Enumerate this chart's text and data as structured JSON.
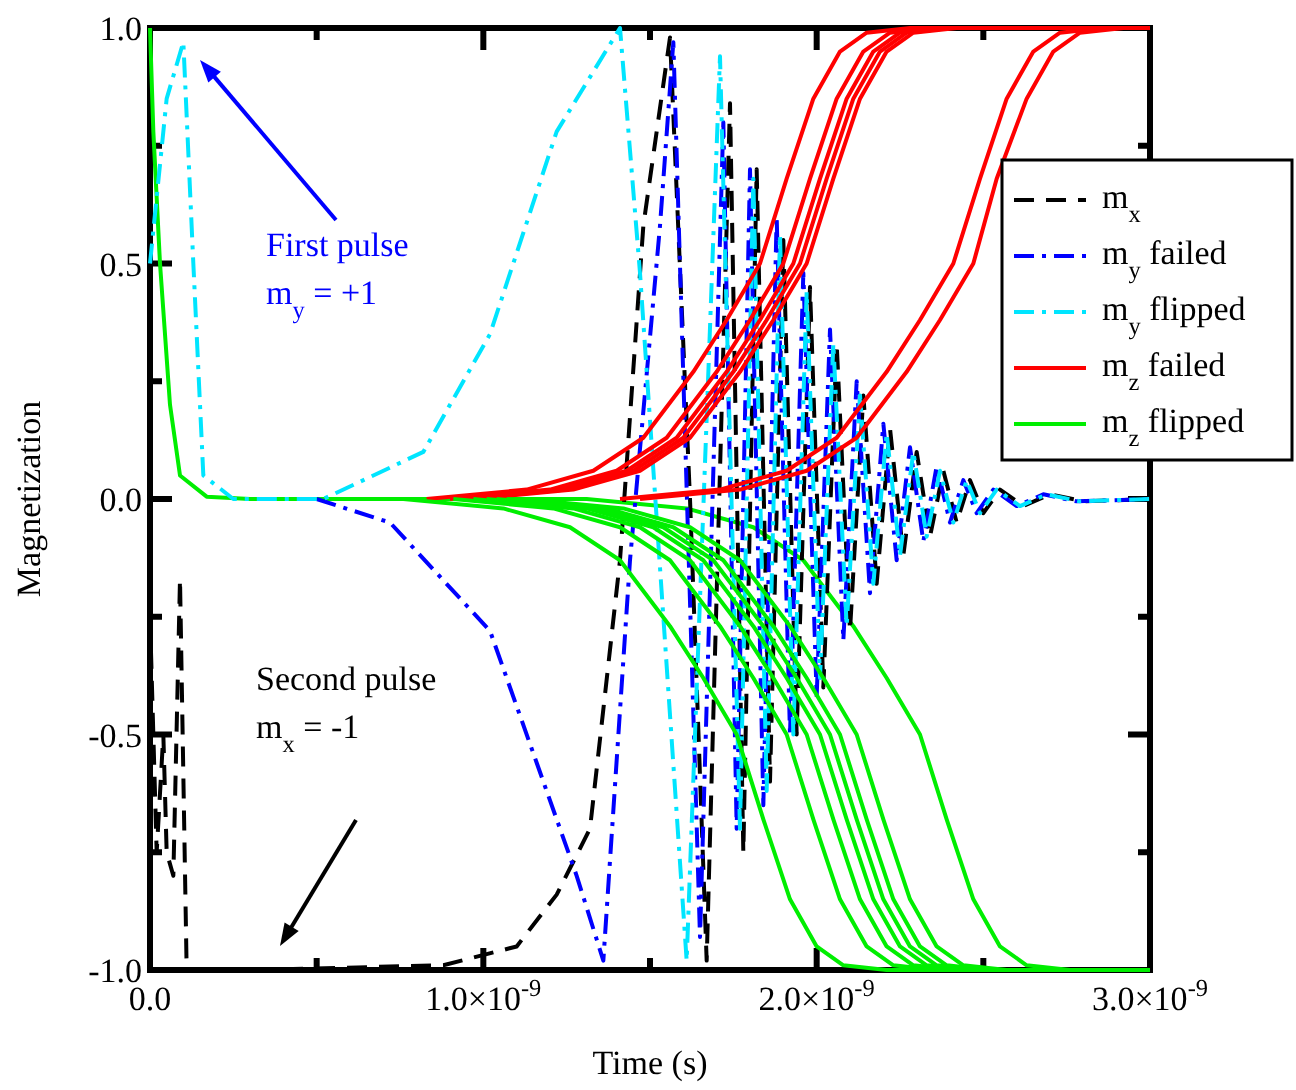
{
  "chart_data": {
    "type": "line",
    "xlabel": "Time (s)",
    "ylabel": "Magnetization",
    "xlim": [
      0,
      3e-09
    ],
    "ylim": [
      -1,
      1
    ],
    "xticks": [
      {
        "value": 0,
        "label": "0.0"
      },
      {
        "value": 5e-10,
        "label": null
      },
      {
        "value": 1e-09,
        "label": "1.0×10$^{-9}$"
      },
      {
        "value": 1.5e-09,
        "label": null
      },
      {
        "value": 2e-09,
        "label": "2.0×10$^{-9}$"
      },
      {
        "value": 2.5e-09,
        "label": null
      },
      {
        "value": 3e-09,
        "label": "3.0×10$^{-9}$"
      }
    ],
    "yticks": [
      {
        "value": -1,
        "label": "-1.0"
      },
      {
        "value": -0.75,
        "label": null
      },
      {
        "value": -0.5,
        "label": "-0.5"
      },
      {
        "value": -0.25,
        "label": null
      },
      {
        "value": 0,
        "label": "0.0"
      },
      {
        "value": 0.25,
        "label": null
      },
      {
        "value": 0.5,
        "label": "0.5"
      },
      {
        "value": 0.75,
        "label": null
      },
      {
        "value": 1,
        "label": "1.0"
      }
    ],
    "legend": "right",
    "grid": false,
    "annotations": [
      "First pulse\nm$_{y}$ = +1",
      "Second pulse\nm$_{x}$ = -1"
    ],
    "series": [
      {
        "color": "#00ee00",
        "line_style": "solid",
        "x": [
          0,
          1e-11,
          3e-11,
          6e-11,
          9e-11,
          1.7e-10,
          3e-10,
          1.31e-09,
          1.61e-09,
          1.81e-09,
          1.96e-09,
          2.11e-09,
          2.21e-09,
          2.31e-09,
          2.39e-09,
          2.47e-09,
          2.55e-09,
          2.63e-09,
          2.76e-09,
          3e-09
        ],
        "values": [
          1,
          0.78,
          0.5,
          0.2,
          0.05,
          0.005,
          0,
          0,
          -0.02,
          -0.06,
          -0.13,
          -0.27,
          -0.38,
          -0.5,
          -0.68,
          -0.85,
          -0.95,
          -0.99,
          -1,
          -1
        ]
      },
      {
        "name": "m$_{x}$",
        "color": "#000000",
        "line_style": "dashed",
        "x": [
          0,
          2e-11,
          4e-11,
          5e-11,
          7e-11,
          9e-11,
          1.1e-10,
          3e-10,
          8.8e-10,
          1.1e-09,
          1.22e-09,
          1.32e-09,
          1.41e-09,
          1.48e-09,
          1.56e-09,
          1.62e-09,
          1.67e-09,
          1.74e-09,
          1.78e-09,
          1.82e-09,
          1.86e-09,
          1.9e-09,
          1.94e-09,
          1.98e-09,
          2.02e-09,
          2.06e-09,
          2.1e-09,
          2.14e-09,
          2.18e-09,
          2.22e-09,
          2.26e-09,
          2.3e-09,
          2.34e-09,
          2.38e-09,
          2.42e-09,
          2.46e-09,
          2.5e-09,
          2.55e-09,
          2.62e-09,
          2.7e-09,
          2.8e-09,
          3e-09
        ],
        "values": [
          -0.25,
          -0.75,
          -0.5,
          -0.75,
          -0.8,
          -0.17,
          -1,
          -1,
          -0.99,
          -0.95,
          -0.84,
          -0.7,
          -0.13,
          0.58,
          0.98,
          0,
          -0.98,
          0.84,
          -0.75,
          0.7,
          -0.6,
          0.55,
          -0.5,
          0.45,
          -0.4,
          0.33,
          -0.28,
          0.22,
          -0.18,
          0.15,
          -0.12,
          0.1,
          -0.08,
          0.06,
          -0.05,
          0.04,
          -0.03,
          0.02,
          -0.015,
          0.01,
          -0.005,
          0
        ]
      },
      {
        "name": "m$_{y}$ failed",
        "color": "#0000ff",
        "line_style": "dashdot",
        "x": [
          5e-10,
          7.2e-10,
          1.02e-09,
          1.16e-09,
          1.28e-09,
          1.36e-09,
          1.44e-09,
          1.53e-09,
          1.57e-09,
          1.65e-09,
          1.72e-09,
          1.76e-09,
          1.8e-09,
          1.84e-09,
          1.88e-09,
          1.92e-09,
          1.96e-09,
          2e-09,
          2.04e-09,
          2.08e-09,
          2.12e-09,
          2.16e-09,
          2.2e-09,
          2.24e-09,
          2.28e-09,
          2.32e-09,
          2.36e-09,
          2.4e-09,
          2.44e-09,
          2.48e-09,
          2.53e-09,
          2.6e-09,
          2.68e-09,
          2.78e-09,
          3e-09
        ],
        "values": [
          0,
          -0.05,
          -0.28,
          -0.56,
          -0.8,
          -0.98,
          -0.13,
          0.58,
          0.97,
          -0.93,
          0.8,
          -0.7,
          0.7,
          -0.65,
          0.6,
          -0.5,
          0.48,
          -0.42,
          0.36,
          -0.3,
          0.25,
          -0.2,
          0.16,
          -0.13,
          0.11,
          -0.09,
          0.07,
          -0.05,
          0.04,
          -0.03,
          0.02,
          -0.015,
          0.01,
          -0.005,
          0
        ]
      },
      {
        "name": "m$_{y}$ flipped",
        "color": "#00e5ff",
        "line_style": "dashdot",
        "x": [
          0,
          5e-11,
          1e-10,
          1.3e-10,
          1.6e-10,
          2.5e-10,
          5.2e-10,
          8.2e-10,
          1.02e-09,
          1.22e-09,
          1.41e-09,
          1.47e-09,
          1.61e-09,
          1.71e-09,
          1.77e-09,
          1.81e-09,
          1.85e-09,
          1.89e-09,
          1.93e-09,
          1.97e-09,
          2.01e-09,
          2.05e-09,
          2.09e-09,
          2.13e-09,
          2.17e-09,
          2.21e-09,
          2.25e-09,
          2.29e-09,
          2.33e-09,
          2.37e-09,
          2.41e-09,
          2.45e-09,
          2.49e-09,
          2.54e-09,
          2.61e-09,
          2.69e-09,
          2.79e-09,
          3e-09
        ],
        "values": [
          0.5,
          0.85,
          0.97,
          0.5,
          0.05,
          0,
          0,
          0.1,
          0.35,
          0.78,
          1,
          0.48,
          -0.98,
          0.94,
          -0.7,
          0.68,
          -0.62,
          0.56,
          -0.5,
          0.44,
          -0.38,
          0.33,
          -0.27,
          0.22,
          -0.18,
          0.14,
          -0.12,
          0.1,
          -0.08,
          0.06,
          -0.05,
          0.04,
          -0.03,
          0.02,
          -0.015,
          0.01,
          -0.005,
          0
        ]
      },
      {
        "name": "m$_{z}$ failed",
        "color": "#ff0000",
        "line_style": "solid",
        "x": [
          8.3e-10,
          1.13e-09,
          1.33e-09,
          1.48e-09,
          1.63e-09,
          1.73e-09,
          1.83e-09,
          1.91e-09,
          1.99e-09,
          2.07e-09,
          2.15e-09,
          2.28e-09,
          3e-09
        ],
        "values": [
          0,
          0.02,
          0.06,
          0.13,
          0.27,
          0.38,
          0.5,
          0.68,
          0.85,
          0.95,
          0.99,
          1,
          1
        ]
      },
      {
        "color": "#ff0000",
        "line_style": "solid",
        "x": [
          9e-10,
          1.2e-09,
          1.4e-09,
          1.55e-09,
          1.7e-09,
          1.8e-09,
          1.9e-09,
          1.98e-09,
          2.06e-09,
          2.14e-09,
          2.22e-09,
          2.35e-09,
          3e-09
        ],
        "values": [
          0,
          0.02,
          0.06,
          0.13,
          0.27,
          0.38,
          0.5,
          0.68,
          0.85,
          0.95,
          0.99,
          1,
          1
        ]
      },
      {
        "color": "#ff0000",
        "line_style": "solid",
        "x": [
          9.3e-10,
          1.23e-09,
          1.43e-09,
          1.58e-09,
          1.73e-09,
          1.83e-09,
          1.93e-09,
          2.01e-09,
          2.09e-09,
          2.17e-09,
          2.25e-09,
          2.38e-09,
          3e-09
        ],
        "values": [
          0,
          0.02,
          0.06,
          0.13,
          0.27,
          0.38,
          0.5,
          0.68,
          0.85,
          0.95,
          0.99,
          1,
          1
        ]
      },
      {
        "color": "#ff0000",
        "line_style": "solid",
        "x": [
          9.5e-10,
          1.25e-09,
          1.45e-09,
          1.6e-09,
          1.75e-09,
          1.85e-09,
          1.95e-09,
          2.03e-09,
          2.11e-09,
          2.19e-09,
          2.27e-09,
          2.4e-09,
          3e-09
        ],
        "values": [
          0,
          0.02,
          0.06,
          0.13,
          0.27,
          0.38,
          0.5,
          0.68,
          0.85,
          0.95,
          0.99,
          1,
          1
        ]
      },
      {
        "color": "#ff0000",
        "line_style": "solid",
        "x": [
          9.7e-10,
          1.27e-09,
          1.47e-09,
          1.62e-09,
          1.77e-09,
          1.87e-09,
          1.97e-09,
          2.05e-09,
          2.13e-09,
          2.21e-09,
          2.29e-09,
          2.42e-09,
          3e-09
        ],
        "values": [
          0,
          0.02,
          0.06,
          0.13,
          0.27,
          0.38,
          0.5,
          0.68,
          0.85,
          0.95,
          0.99,
          1,
          1
        ]
      },
      {
        "color": "#ff0000",
        "line_style": "solid",
        "x": [
          1.41e-09,
          1.71e-09,
          1.91e-09,
          2.06e-09,
          2.21e-09,
          2.31e-09,
          2.41e-09,
          2.49e-09,
          2.57e-09,
          2.65e-09,
          2.73e-09,
          2.86e-09,
          3e-09
        ],
        "values": [
          0,
          0.02,
          0.06,
          0.13,
          0.27,
          0.38,
          0.5,
          0.68,
          0.85,
          0.95,
          0.99,
          1,
          1
        ]
      },
      {
        "color": "#ff0000",
        "line_style": "solid",
        "x": [
          1.47e-09,
          1.77e-09,
          1.97e-09,
          2.12e-09,
          2.27e-09,
          2.37e-09,
          2.47e-09,
          2.54e-09,
          2.63e-09,
          2.71e-09,
          2.79e-09,
          2.92e-09,
          3e-09
        ],
        "values": [
          0,
          0.02,
          0.06,
          0.13,
          0.27,
          0.38,
          0.5,
          0.68,
          0.85,
          0.95,
          0.99,
          1,
          1
        ]
      },
      {
        "color": "#00ee00",
        "line_style": "solid",
        "x": [
          9.1e-10,
          1.21e-09,
          1.41e-09,
          1.56e-09,
          1.71e-09,
          1.81e-09,
          1.91e-09,
          1.99e-09,
          2.07e-09,
          2.15e-09,
          2.23e-09,
          2.36e-09,
          3e-09
        ],
        "values": [
          0,
          -0.02,
          -0.06,
          -0.13,
          -0.27,
          -0.38,
          -0.5,
          -0.68,
          -0.85,
          -0.95,
          -0.99,
          -1,
          -1
        ]
      },
      {
        "color": "#00ee00",
        "line_style": "solid",
        "x": [
          9.7e-10,
          1.27e-09,
          1.47e-09,
          1.62e-09,
          1.77e-09,
          1.87e-09,
          1.97e-09,
          2.05e-09,
          2.13e-09,
          2.21e-09,
          2.29e-09,
          2.42e-09,
          3e-09
        ],
        "values": [
          0,
          -0.02,
          -0.06,
          -0.13,
          -0.27,
          -0.38,
          -0.5,
          -0.68,
          -0.85,
          -0.95,
          -0.99,
          -1,
          -1
        ]
      },
      {
        "color": "#00ee00",
        "line_style": "solid",
        "x": [
          1.01e-09,
          1.31e-09,
          1.51e-09,
          1.66e-09,
          1.81e-09,
          1.91e-09,
          2.01e-09,
          2.09e-09,
          2.17e-09,
          2.25e-09,
          2.33e-09,
          2.46e-09,
          3e-09
        ],
        "values": [
          0,
          -0.02,
          -0.06,
          -0.13,
          -0.27,
          -0.38,
          -0.5,
          -0.68,
          -0.85,
          -0.95,
          -0.99,
          -1,
          -1
        ]
      },
      {
        "color": "#00ee00",
        "line_style": "solid",
        "x": [
          1.04e-09,
          1.34e-09,
          1.54e-09,
          1.69e-09,
          1.84e-09,
          1.94e-09,
          2.04e-09,
          2.12e-09,
          2.2e-09,
          2.28e-09,
          2.36e-09,
          2.49e-09,
          3e-09
        ],
        "values": [
          0,
          -0.02,
          -0.06,
          -0.13,
          -0.27,
          -0.38,
          -0.5,
          -0.68,
          -0.85,
          -0.95,
          -0.99,
          -1,
          -1
        ]
      },
      {
        "color": "#00ee00",
        "line_style": "solid",
        "x": [
          1.07e-09,
          1.37e-09,
          1.57e-09,
          1.72e-09,
          1.87e-09,
          1.97e-09,
          2.07e-09,
          2.15e-09,
          2.23e-09,
          2.31e-09,
          2.39e-09,
          2.52e-09,
          3e-09
        ],
        "values": [
          0,
          -0.02,
          -0.06,
          -0.13,
          -0.27,
          -0.38,
          -0.5,
          -0.68,
          -0.85,
          -0.95,
          -0.99,
          -1,
          -1
        ]
      },
      {
        "color": "#00ee00",
        "line_style": "solid",
        "x": [
          1.12e-09,
          1.42e-09,
          1.62e-09,
          1.77e-09,
          1.92e-09,
          2.02e-09,
          2.12e-09,
          2.2e-09,
          2.28e-09,
          2.36e-09,
          2.44e-09,
          2.57e-09,
          3e-09
        ],
        "values": [
          0,
          -0.02,
          -0.06,
          -0.13,
          -0.27,
          -0.38,
          -0.5,
          -0.68,
          -0.85,
          -0.95,
          -0.99,
          -1,
          -1
        ]
      },
      {
        "name": "m$_{z}$ flipped",
        "color": "#00ee00",
        "line_style": "solid",
        "x": [
          7.6e-10,
          1.06e-09,
          1.26e-09,
          1.41e-09,
          1.56e-09,
          1.66e-09,
          1.76e-09,
          1.84e-09,
          1.92e-09,
          2e-09,
          2.08e-09,
          2.21e-09,
          3e-09
        ],
        "values": [
          0,
          -0.02,
          -0.06,
          -0.13,
          -0.27,
          -0.38,
          -0.5,
          -0.68,
          -0.85,
          -0.95,
          -0.99,
          -1,
          -1
        ]
      }
    ]
  }
}
